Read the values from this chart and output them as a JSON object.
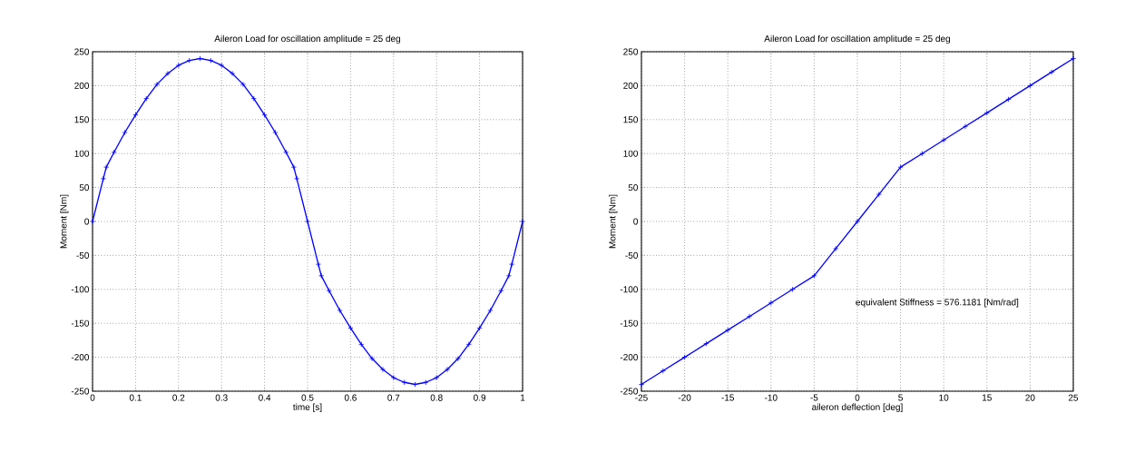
{
  "chart_data": [
    {
      "type": "line",
      "title": "Aileron Load for oscillation amplitude =  25  deg",
      "xlabel": "time [s]",
      "ylabel": "Moment [Nm]",
      "x": [
        0,
        0.025,
        0.032,
        0.05,
        0.075,
        0.1,
        0.125,
        0.15,
        0.175,
        0.2,
        0.225,
        0.25,
        0.275,
        0.3,
        0.325,
        0.35,
        0.375,
        0.4,
        0.425,
        0.45,
        0.468,
        0.475,
        0.5,
        0.525,
        0.532,
        0.55,
        0.575,
        0.6,
        0.625,
        0.65,
        0.675,
        0.7,
        0.725,
        0.75,
        0.775,
        0.8,
        0.825,
        0.85,
        0.875,
        0.9,
        0.925,
        0.95,
        0.968,
        0.975,
        1
      ],
      "series": [
        {
          "color": "#0000ff",
          "values": [
            0,
            63,
            80,
            102,
            131,
            157,
            181,
            202,
            218,
            230,
            237,
            240,
            237,
            230,
            218,
            202,
            181,
            157,
            131,
            102,
            80,
            63,
            0,
            -63,
            -80,
            -102,
            -131,
            -157,
            -181,
            -202,
            -218,
            -230,
            -237,
            -240,
            -237,
            -230,
            -218,
            -202,
            -181,
            -157,
            -131,
            -102,
            -80,
            -63,
            0
          ]
        }
      ],
      "xlim": [
        0,
        1
      ],
      "xticks": [
        0,
        0.1,
        0.2,
        0.3,
        0.4,
        0.5,
        0.6,
        0.7,
        0.8,
        0.9,
        1
      ],
      "ylim": [
        -250,
        250
      ],
      "yticks": [
        -250,
        -200,
        -150,
        -100,
        -50,
        0,
        50,
        100,
        150,
        200,
        250
      ],
      "grid": true,
      "marker": "cross"
    },
    {
      "type": "line",
      "title": "Aileron Load for oscillation amplitude =  25  deg",
      "xlabel": "aileron deflection [deg]",
      "ylabel": "Moment [Nm]",
      "x": [
        -25,
        -22.5,
        -20,
        -17.5,
        -15,
        -12.5,
        -10,
        -7.5,
        -5,
        -2.5,
        0,
        2.5,
        5,
        7.5,
        10,
        12.5,
        15,
        17.5,
        20,
        22.5,
        25
      ],
      "series": [
        {
          "color": "#0000ff",
          "values": [
            -240,
            -220,
            -200,
            -180,
            -160,
            -140,
            -120,
            -100,
            -80,
            -40,
            0,
            40,
            80,
            100,
            120,
            140,
            160,
            180,
            200,
            220,
            240
          ]
        }
      ],
      "xlim": [
        -25,
        25
      ],
      "xticks": [
        -25,
        -20,
        -15,
        -10,
        -5,
        0,
        5,
        10,
        15,
        20,
        25
      ],
      "ylim": [
        -250,
        250
      ],
      "yticks": [
        -250,
        -200,
        -150,
        -100,
        -50,
        0,
        50,
        100,
        150,
        200,
        250
      ],
      "grid": true,
      "marker": "cross",
      "annotations": [
        "equivalent Stiffness =  576.1181  [Nm/rad]"
      ]
    }
  ]
}
